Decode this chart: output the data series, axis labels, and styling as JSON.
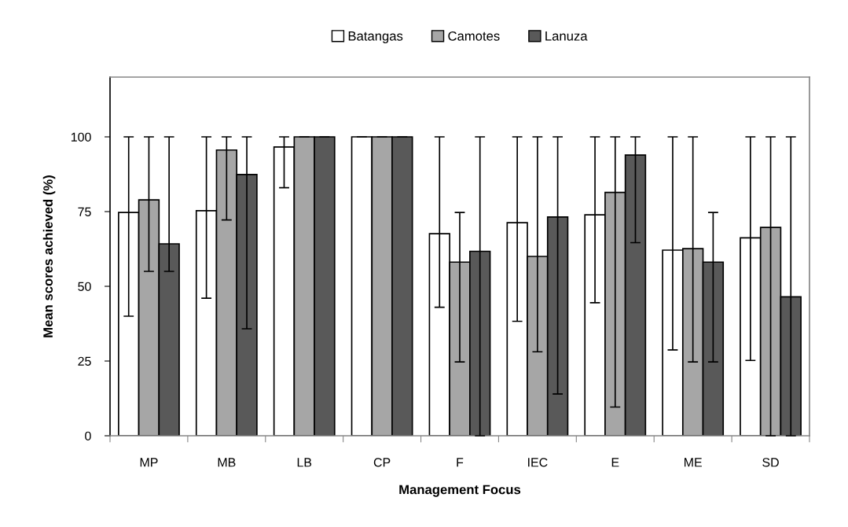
{
  "chart_data": {
    "type": "bar",
    "xlabel": "Management Focus",
    "ylabel": "Mean scores achieved (%)",
    "categories": [
      "MP",
      "MB",
      "LB",
      "CP",
      "F",
      "IEC",
      "E",
      "ME",
      "SD"
    ],
    "series": [
      {
        "name": "Batangas",
        "color": "#ffffff",
        "values": [
          74.7,
          75.3,
          96.6,
          100,
          67.6,
          71.3,
          73.9,
          62.1,
          66.2
        ],
        "errors": [
          [
            40,
            100
          ],
          [
            46,
            100
          ],
          [
            83,
            100
          ],
          [
            100,
            100
          ],
          [
            43,
            100
          ],
          [
            38.3,
            100
          ],
          [
            44.5,
            100
          ],
          [
            28.7,
            100
          ],
          [
            25.2,
            100
          ]
        ]
      },
      {
        "name": "Camotes",
        "color": "#a6a6a6",
        "values": [
          78.9,
          95.6,
          100,
          100,
          58.1,
          60,
          81.4,
          62.6,
          69.7
        ],
        "errors": [
          [
            55,
            100
          ],
          [
            72.2,
            100
          ],
          [
            100,
            100
          ],
          [
            100,
            100
          ],
          [
            24.7,
            74.7
          ],
          [
            28.1,
            100
          ],
          [
            9.6,
            100
          ],
          [
            24.7,
            100
          ],
          [
            0,
            100
          ]
        ]
      },
      {
        "name": "Lanuza",
        "color": "#595959",
        "values": [
          64.2,
          87.4,
          100,
          100,
          61.7,
          73.2,
          93.9,
          58.1,
          46.5
        ],
        "errors": [
          [
            55,
            100
          ],
          [
            35.8,
            100
          ],
          [
            100,
            100
          ],
          [
            100,
            100
          ],
          [
            0,
            100
          ],
          [
            14,
            100
          ],
          [
            64.6,
            100
          ],
          [
            24.7,
            74.7
          ],
          [
            0,
            100
          ]
        ]
      }
    ],
    "ylim": [
      0,
      120
    ],
    "yticks": [
      0,
      25,
      50,
      75,
      100
    ],
    "grid": false,
    "legend": "top"
  }
}
